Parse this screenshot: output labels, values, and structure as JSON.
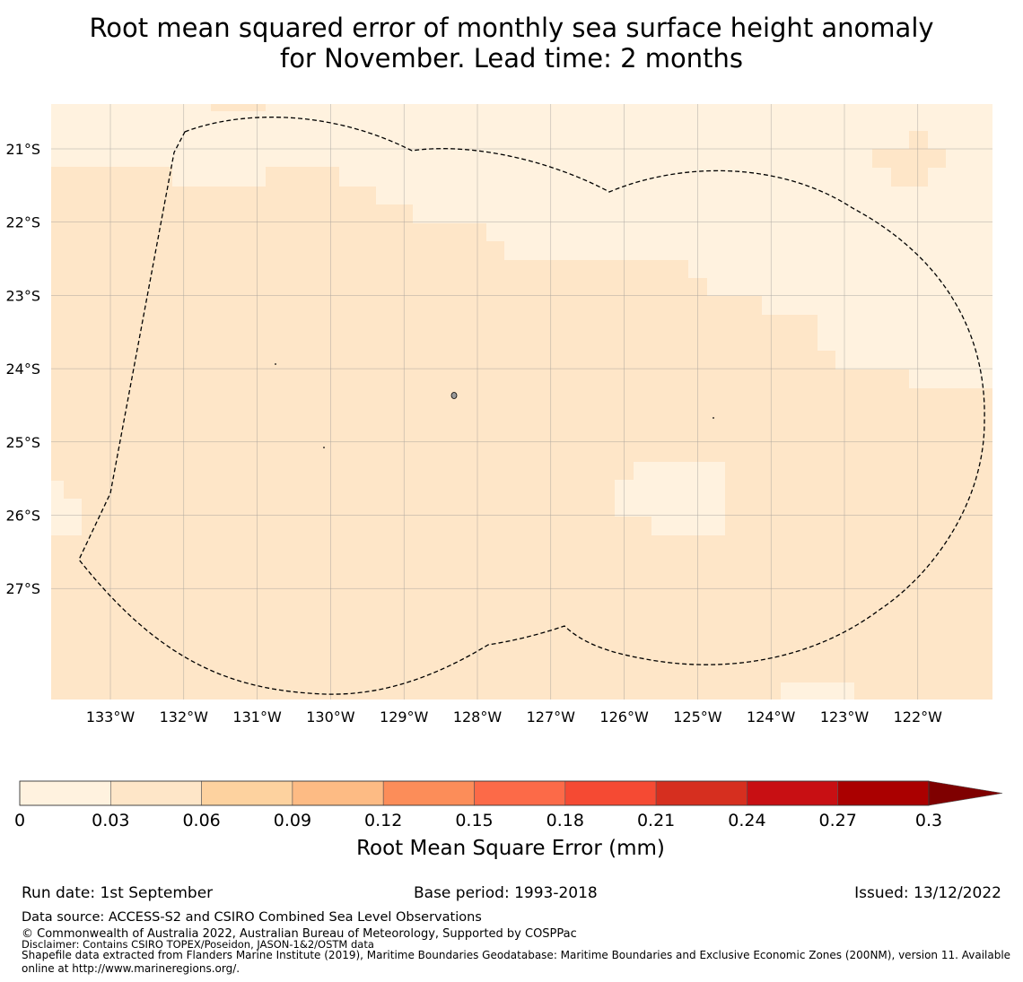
{
  "title": {
    "line1": "Root mean squared error of monthly sea surface height anomaly",
    "line2": "for November. Lead time: 2 months"
  },
  "map": {
    "lat_labels": [
      "21°S",
      "22°S",
      "23°S",
      "24°S",
      "25°S",
      "26°S",
      "27°S"
    ],
    "lon_labels": [
      "133°W",
      "132°W",
      "131°W",
      "130°W",
      "129°W",
      "128°W",
      "127°W",
      "126°W",
      "125°W",
      "124°W",
      "123°W",
      "122°W"
    ],
    "fill_colors": {
      "low": "#fff2df",
      "mid": "#fee6c8"
    },
    "boundary_style": "dashed black EEZ outline"
  },
  "colorbar": {
    "label": "Root Mean Square Error (mm)",
    "ticks": [
      "0",
      "0.03",
      "0.06",
      "0.09",
      "0.12",
      "0.15",
      "0.18",
      "0.21",
      "0.24",
      "0.27",
      "0.3"
    ],
    "colors": [
      "#fff2df",
      "#fee6c8",
      "#fdd29f",
      "#fdbb84",
      "#fc8d59",
      "#fc6a48",
      "#f54a33",
      "#d62f1f",
      "#c80f13",
      "#aa0000",
      "#7f0000"
    ]
  },
  "footer": {
    "run_date": "Run date: 1st September",
    "base_period": "Base period: 1993-2018",
    "issued": "Issued: 13/12/2022",
    "data_source": "Data source: ACCESS-S2 and CSIRO Combined Sea Level Observations",
    "copyright": "© Commonwealth of Australia 2022, Australian Bureau of Meteorology, Supported by COSPPac",
    "disclaimer": "Disclaimer: Contains CSIRO TOPEX/Poseidon, JASON-1&2/OSTM data",
    "shapefile_line1": "Shapefile data extracted from Flanders Marine Institute (2019), Maritime Boundaries Geodatabase: Maritime Boundaries and Exclusive Economic Zones (200NM), version 11. Available",
    "shapefile_line2": "online at http://www.marineregions.org/."
  }
}
